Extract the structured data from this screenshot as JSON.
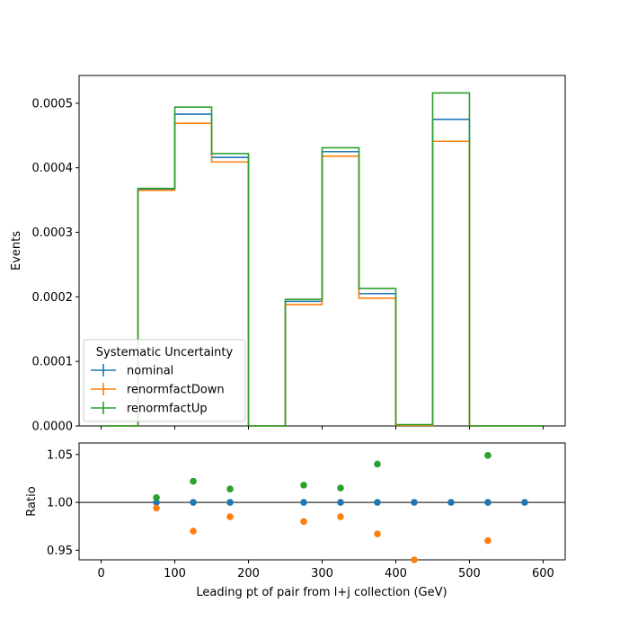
{
  "chart_data": {
    "type": "step-histogram-with-ratio",
    "legend": {
      "title": "Systematic Uncertainty",
      "placement": "lower-left"
    },
    "bin_edges": [
      0,
      50,
      100,
      150,
      200,
      250,
      300,
      350,
      400,
      450,
      500,
      550,
      600
    ],
    "series": [
      {
        "name": "nominal",
        "color": "#1f77b4",
        "values": [
          0,
          0.000367,
          0.000483,
          0.000416,
          0,
          0.000193,
          0.000425,
          0.000205,
          1.5e-06,
          0.000475,
          0,
          0
        ]
      },
      {
        "name": "renormfactDown",
        "color": "#ff7f0e",
        "values": [
          0,
          0.000365,
          0.000469,
          0.000409,
          0,
          0.000188,
          0.000418,
          0.000198,
          1e-06,
          0.000441,
          0,
          0
        ]
      },
      {
        "name": "renormfactUp",
        "color": "#2ca02c",
        "values": [
          0,
          0.000368,
          0.000494,
          0.000422,
          0,
          0.000196,
          0.000431,
          0.000213,
          2e-06,
          0.000516,
          0,
          0
        ]
      }
    ],
    "main": {
      "ylabel": "Events",
      "ylim": [
        0,
        0.000543
      ],
      "yticks": [
        "0.0000",
        "0.0001",
        "0.0002",
        "0.0003",
        "0.0004",
        "0.0005"
      ],
      "ytick_values": [
        0,
        0.0001,
        0.0002,
        0.0003,
        0.0004,
        0.0005
      ]
    },
    "ratio": {
      "ylabel": "Ratio",
      "ylim": [
        0.94,
        1.062
      ],
      "yticks": [
        "0.95",
        "1.00",
        "1.05"
      ],
      "ytick_values": [
        0.95,
        1.0,
        1.05
      ],
      "reference_line": 1.0,
      "points": [
        {
          "series": "nominal",
          "color": "#1f77b4",
          "x": [
            75,
            125,
            175,
            275,
            325,
            375,
            425,
            475,
            525,
            575
          ],
          "y": [
            1.0,
            1.0,
            1.0,
            1.0,
            1.0,
            1.0,
            1.0,
            1.0,
            1.0,
            1.0
          ]
        },
        {
          "series": "renormfactDown",
          "color": "#ff7f0e",
          "x": [
            75,
            125,
            175,
            275,
            325,
            375,
            425,
            525
          ],
          "y": [
            0.994,
            0.97,
            0.985,
            0.98,
            0.985,
            0.967,
            0.94,
            0.96
          ]
        },
        {
          "series": "renormfactUp",
          "color": "#2ca02c",
          "x": [
            75,
            125,
            175,
            275,
            325,
            375,
            525
          ],
          "y": [
            1.005,
            1.022,
            1.014,
            1.018,
            1.015,
            1.04,
            1.049
          ]
        }
      ]
    },
    "xaxis": {
      "label": "Leading pt of pair from l+j collection (GeV)",
      "xlim": [
        -30,
        630
      ],
      "ticks": [
        "0",
        "100",
        "200",
        "300",
        "400",
        "500",
        "600"
      ],
      "tick_values": [
        0,
        100,
        200,
        300,
        400,
        500,
        600
      ]
    }
  }
}
